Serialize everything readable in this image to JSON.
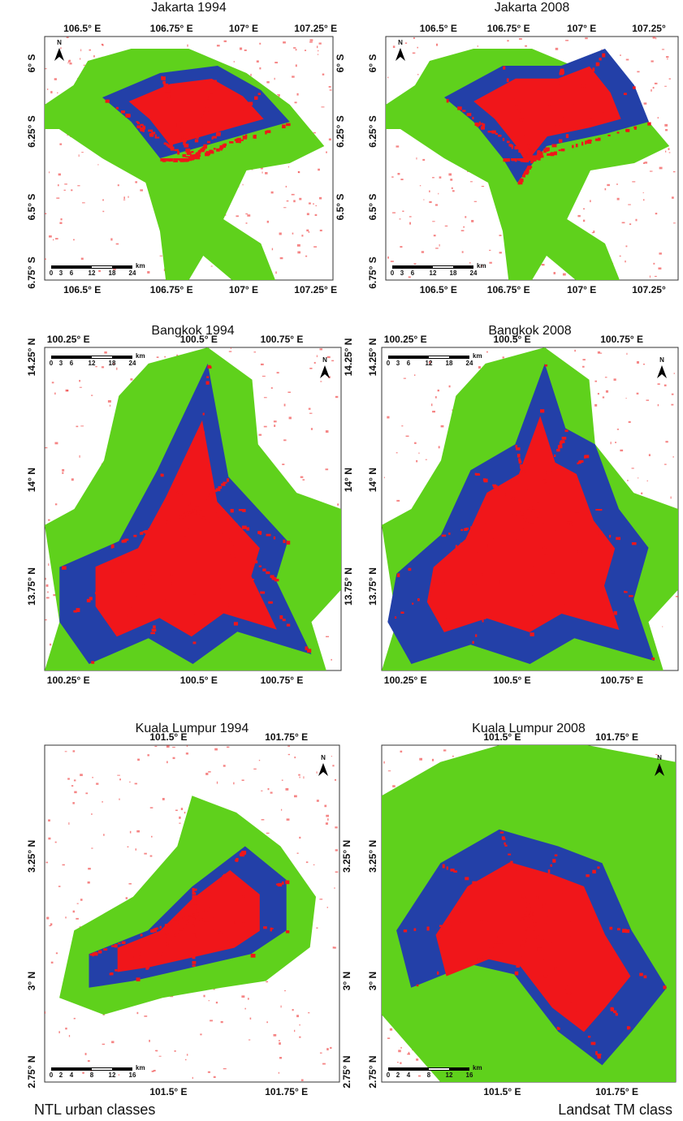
{
  "north_label": "N",
  "panels": [
    {
      "title": "Jakarta 1994",
      "top_ticks": [
        "106.5° E",
        "106.75° E",
        "107° E",
        "107.25° E"
      ],
      "bottom_ticks": [
        "106.5° E",
        "106.75° E",
        "107° E",
        "107.25° E"
      ],
      "left_ticks": [
        "6° S",
        "6.25° S",
        "6.5° S",
        "6.75° S"
      ],
      "right_ticks": [
        "6° S",
        "6.25° S",
        "6.5° S"
      ],
      "scale_labels": [
        "0",
        "3",
        "6",
        "12",
        "18",
        "24"
      ],
      "scale_unit": "km"
    },
    {
      "title": "Jakarta 2008",
      "top_ticks": [
        "106.5° E",
        "106.75° E",
        "107° E",
        "107.25°"
      ],
      "bottom_ticks": [
        "106.5° E",
        "106.75° E",
        "107° E",
        "107.25°"
      ],
      "left_ticks": [
        "6° S",
        "6.25° S",
        "6.5° S",
        "6.75° S"
      ],
      "scale_labels": [
        "0",
        "3",
        "6",
        "12",
        "18",
        "24"
      ],
      "scale_unit": "km"
    },
    {
      "title": "Bangkok 1994",
      "top_ticks": [
        "100.25° E",
        "100.5° E",
        "100.75° E"
      ],
      "bottom_ticks": [
        "100.25° E",
        "100.5° E",
        "100.75° E"
      ],
      "left_ticks": [
        "14.25° N",
        "14° N",
        "13.75° N"
      ],
      "right_ticks": [
        "14.25° N",
        "14° N",
        "13.75° N"
      ],
      "scale_labels": [
        "0",
        "3",
        "6",
        "12",
        "18",
        "24"
      ],
      "scale_unit": "km"
    },
    {
      "title": "Bangkok 2008",
      "top_ticks": [
        "100.25° E",
        "100.5° E",
        "100.75° E"
      ],
      "bottom_ticks": [
        "100.25° E",
        "100.5° E",
        "100.75° E"
      ],
      "left_ticks": [
        "14.25° N",
        "14° N",
        "13.75° N"
      ],
      "scale_labels": [
        "0",
        "3",
        "6",
        "12",
        "18",
        "24"
      ],
      "scale_unit": "km"
    },
    {
      "title": "Kuala Lumpur 1994",
      "top_ticks": [
        "101.5° E",
        "101.75° E"
      ],
      "bottom_ticks": [
        "101.5° E",
        "101.75° E"
      ],
      "left_ticks": [
        "3.25° N",
        "3° N",
        "2.75° N"
      ],
      "right_ticks": [
        "3.25° N",
        "3° N",
        "2.75° N"
      ],
      "scale_labels": [
        "0",
        "2",
        "4",
        "8",
        "12",
        "16"
      ],
      "scale_unit": "km"
    },
    {
      "title": "Kuala Lumpur 2008",
      "top_ticks": [
        "101.5° E",
        "101.75° E"
      ],
      "bottom_ticks": [
        "101.5° E",
        "101.75° E"
      ],
      "left_ticks": [
        "3.25° N",
        "3° N",
        "2.75° N"
      ],
      "scale_labels": [
        "0",
        "2",
        "4",
        "8",
        "12",
        "16"
      ],
      "scale_unit": "km"
    }
  ],
  "footer": {
    "left": "NTL urban classes",
    "right": "Landsat TM class"
  }
}
